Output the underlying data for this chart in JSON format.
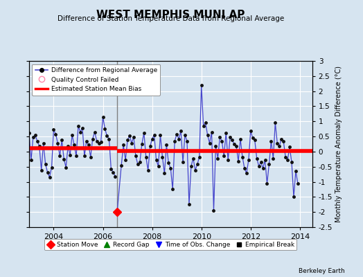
{
  "title": "WEST MEMPHIS MUNI AP",
  "subtitle": "Difference of Station Temperature Data from Regional Average",
  "ylabel": "Monthly Temperature Anomaly Difference (°C)",
  "xlim": [
    2003.0,
    2014.5
  ],
  "ylim": [
    -2.5,
    3.0
  ],
  "yticks": [
    -2.5,
    -2,
    -1.5,
    -1,
    -0.5,
    0,
    0.5,
    1,
    1.5,
    2,
    2.5,
    3
  ],
  "ytick_labels": [
    "-2.5",
    "-2",
    "-1.5",
    "-1",
    "-0.5",
    "0",
    "0.5",
    "1",
    "1.5",
    "2",
    "2.5",
    "3"
  ],
  "xticks": [
    2004,
    2006,
    2008,
    2010,
    2012,
    2014
  ],
  "bias1": 0.12,
  "bias2": 0.02,
  "break_x": 2006.58,
  "station_move_x": 2006.58,
  "station_move_y": -2.0,
  "bg_color": "#d6e4f0",
  "line_color": "#4444cc",
  "marker_color": "#111111",
  "bias_color": "#ff0000",
  "grid_color": "#ffffff",
  "monthly_data": [
    2003.0,
    0.62,
    2003.083,
    -0.28,
    2003.167,
    0.48,
    2003.25,
    0.55,
    2003.333,
    0.35,
    2003.417,
    0.18,
    2003.5,
    -0.62,
    2003.583,
    0.28,
    2003.667,
    -0.42,
    2003.75,
    -0.68,
    2003.833,
    -0.85,
    2003.917,
    -0.52,
    2004.0,
    0.72,
    2004.083,
    0.58,
    2004.167,
    0.28,
    2004.25,
    -0.15,
    2004.333,
    0.38,
    2004.417,
    -0.25,
    2004.5,
    -0.52,
    2004.583,
    0.18,
    2004.667,
    -0.12,
    2004.75,
    0.55,
    2004.833,
    0.22,
    2004.917,
    -0.15,
    2005.0,
    0.85,
    2005.083,
    0.65,
    2005.167,
    0.78,
    2005.25,
    -0.15,
    2005.333,
    0.35,
    2005.417,
    0.22,
    2005.5,
    -0.18,
    2005.583,
    0.42,
    2005.667,
    0.65,
    2005.75,
    0.35,
    2005.833,
    0.28,
    2005.917,
    0.32,
    2006.0,
    1.15,
    2006.083,
    0.75,
    2006.167,
    0.52,
    2006.25,
    0.42,
    2006.333,
    -0.58,
    2006.417,
    -0.68,
    2006.5,
    -0.82,
    2006.583,
    -1.95,
    2006.75,
    -0.45,
    2006.833,
    0.22,
    2006.917,
    -0.28,
    2007.0,
    0.38,
    2007.083,
    0.52,
    2007.167,
    0.28,
    2007.25,
    0.48,
    2007.333,
    -0.15,
    2007.417,
    -0.42,
    2007.5,
    -0.35,
    2007.583,
    0.25,
    2007.667,
    0.62,
    2007.75,
    -0.18,
    2007.833,
    -0.62,
    2007.917,
    0.18,
    2008.0,
    0.42,
    2008.083,
    0.55,
    2008.167,
    -0.28,
    2008.25,
    -0.48,
    2008.333,
    0.55,
    2008.417,
    -0.18,
    2008.5,
    -0.72,
    2008.583,
    0.22,
    2008.667,
    -0.38,
    2008.75,
    -0.55,
    2008.833,
    -1.25,
    2008.917,
    0.35,
    2009.0,
    0.58,
    2009.083,
    0.42,
    2009.167,
    0.68,
    2009.25,
    -0.35,
    2009.333,
    0.55,
    2009.417,
    0.35,
    2009.5,
    -1.75,
    2009.583,
    -0.48,
    2009.667,
    -0.22,
    2009.75,
    -0.62,
    2009.833,
    -0.42,
    2009.917,
    -0.18,
    2010.0,
    2.2,
    2010.083,
    0.85,
    2010.167,
    0.95,
    2010.25,
    0.55,
    2010.333,
    0.28,
    2010.417,
    0.65,
    2010.5,
    -1.95,
    2010.583,
    0.18,
    2010.667,
    -0.22,
    2010.75,
    0.48,
    2010.833,
    0.35,
    2010.917,
    -0.15,
    2011.0,
    0.62,
    2011.083,
    -0.28,
    2011.167,
    0.48,
    2011.25,
    0.38,
    2011.333,
    0.25,
    2011.417,
    0.18,
    2011.5,
    -0.32,
    2011.583,
    0.42,
    2011.667,
    -0.18,
    2011.75,
    -0.55,
    2011.833,
    -0.72,
    2011.917,
    -0.28,
    2012.0,
    0.68,
    2012.083,
    0.45,
    2012.167,
    0.38,
    2012.25,
    -0.22,
    2012.333,
    -0.48,
    2012.417,
    -0.35,
    2012.5,
    -0.55,
    2012.583,
    -0.28,
    2012.667,
    -1.05,
    2012.75,
    -0.42,
    2012.833,
    0.35,
    2012.917,
    -0.22,
    2013.0,
    0.95,
    2013.083,
    0.28,
    2013.167,
    0.18,
    2013.25,
    0.42,
    2013.333,
    0.35,
    2013.417,
    -0.18,
    2013.5,
    -0.28,
    2013.583,
    0.15,
    2013.667,
    -0.35,
    2013.75,
    -1.5,
    2013.833,
    -0.65,
    2013.917,
    -1.05
  ]
}
